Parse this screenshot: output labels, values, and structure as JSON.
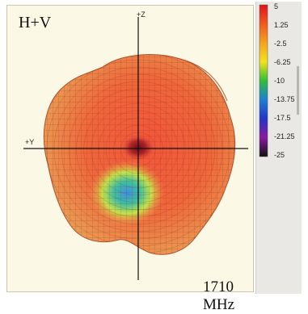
{
  "chart_data": {
    "type": "radiation-pattern-3d",
    "title": "H+V",
    "frequency_label": "1710 MHz",
    "axes": {
      "vertical": "+Z",
      "horizontal": "+Y"
    },
    "colorbar": {
      "ticks": [
        "5",
        "1.25",
        "-2.5",
        "-6.25",
        "-10",
        "-13.75",
        "-17.5",
        "-21.25",
        "-25"
      ],
      "range": [
        -25,
        5
      ],
      "colors": [
        "#e0141b",
        "#f05a1e",
        "#f7a21c",
        "#f3e21a",
        "#2fbf3a",
        "#1c7fd6",
        "#2535c8",
        "#8a1aa0",
        "#111111"
      ]
    }
  }
}
